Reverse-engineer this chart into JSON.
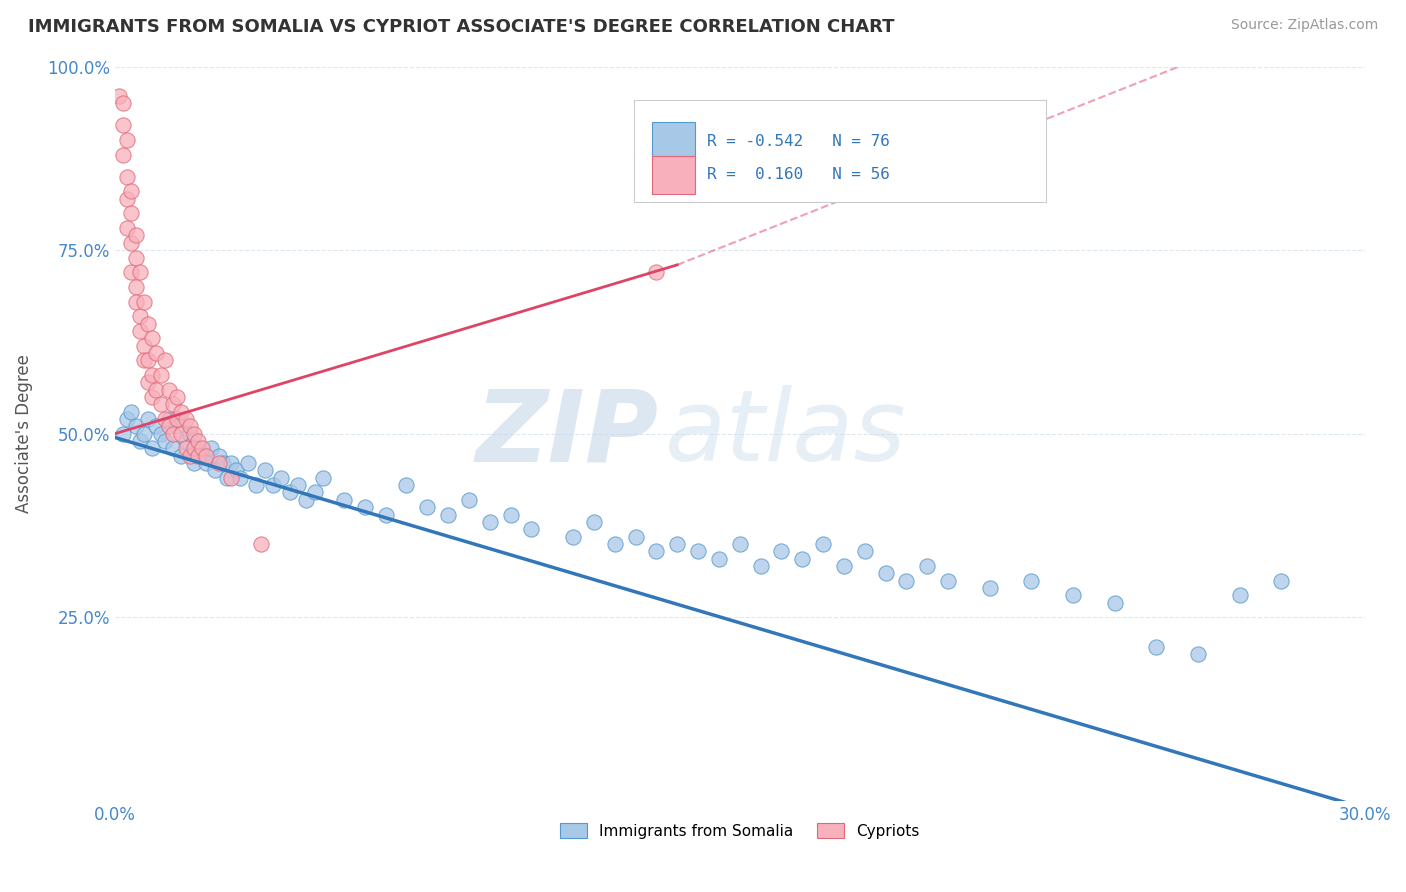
{
  "title": "IMMIGRANTS FROM SOMALIA VS CYPRIOT ASSOCIATE'S DEGREE CORRELATION CHART",
  "source_text": "Source: ZipAtlas.com",
  "ylabel": "Associate's Degree",
  "x_min": 0.0,
  "x_max": 0.3,
  "y_min": 0.0,
  "y_max": 1.0,
  "x_ticks": [
    0.0,
    0.05,
    0.1,
    0.15,
    0.2,
    0.25,
    0.3
  ],
  "x_tick_labels": [
    "0.0%",
    "",
    "",
    "",
    "",
    "",
    "30.0%"
  ],
  "y_ticks": [
    0.0,
    0.25,
    0.5,
    0.75,
    1.0
  ],
  "y_tick_labels": [
    "",
    "25.0%",
    "50.0%",
    "75.0%",
    "100.0%"
  ],
  "blue_fill": "#a8c8e8",
  "blue_edge": "#5599cc",
  "pink_fill": "#f8b0bc",
  "pink_edge": "#e06878",
  "blue_line_color": "#3377bb",
  "pink_line_color": "#dd4466",
  "blue_R": -0.542,
  "blue_N": 76,
  "pink_R": 0.16,
  "pink_N": 56,
  "legend_label_blue": "Immigrants from Somalia",
  "legend_label_pink": "Cypriots",
  "watermark_zip": "ZIP",
  "watermark_atlas": "atlas",
  "background_color": "#ffffff",
  "grid_color": "#dde8f0",
  "blue_trend": [
    0.0,
    0.495,
    0.3,
    -0.01
  ],
  "pink_trend_solid": [
    0.0,
    0.5,
    0.135,
    0.73
  ],
  "pink_trend_dashed": [
    0.0,
    0.5,
    0.3,
    1.1
  ],
  "blue_scatter": [
    [
      0.002,
      0.5
    ],
    [
      0.003,
      0.52
    ],
    [
      0.004,
      0.53
    ],
    [
      0.005,
      0.51
    ],
    [
      0.006,
      0.49
    ],
    [
      0.007,
      0.5
    ],
    [
      0.008,
      0.52
    ],
    [
      0.009,
      0.48
    ],
    [
      0.01,
      0.51
    ],
    [
      0.011,
      0.5
    ],
    [
      0.012,
      0.49
    ],
    [
      0.013,
      0.52
    ],
    [
      0.014,
      0.48
    ],
    [
      0.015,
      0.51
    ],
    [
      0.016,
      0.47
    ],
    [
      0.017,
      0.49
    ],
    [
      0.018,
      0.5
    ],
    [
      0.019,
      0.46
    ],
    [
      0.02,
      0.48
    ],
    [
      0.021,
      0.47
    ],
    [
      0.022,
      0.46
    ],
    [
      0.023,
      0.48
    ],
    [
      0.024,
      0.45
    ],
    [
      0.025,
      0.47
    ],
    [
      0.026,
      0.46
    ],
    [
      0.027,
      0.44
    ],
    [
      0.028,
      0.46
    ],
    [
      0.029,
      0.45
    ],
    [
      0.03,
      0.44
    ],
    [
      0.032,
      0.46
    ],
    [
      0.034,
      0.43
    ],
    [
      0.036,
      0.45
    ],
    [
      0.038,
      0.43
    ],
    [
      0.04,
      0.44
    ],
    [
      0.042,
      0.42
    ],
    [
      0.044,
      0.43
    ],
    [
      0.046,
      0.41
    ],
    [
      0.048,
      0.42
    ],
    [
      0.05,
      0.44
    ],
    [
      0.055,
      0.41
    ],
    [
      0.06,
      0.4
    ],
    [
      0.065,
      0.39
    ],
    [
      0.07,
      0.43
    ],
    [
      0.075,
      0.4
    ],
    [
      0.08,
      0.39
    ],
    [
      0.085,
      0.41
    ],
    [
      0.09,
      0.38
    ],
    [
      0.095,
      0.39
    ],
    [
      0.1,
      0.37
    ],
    [
      0.11,
      0.36
    ],
    [
      0.115,
      0.38
    ],
    [
      0.12,
      0.35
    ],
    [
      0.125,
      0.36
    ],
    [
      0.13,
      0.34
    ],
    [
      0.135,
      0.35
    ],
    [
      0.14,
      0.34
    ],
    [
      0.145,
      0.33
    ],
    [
      0.15,
      0.35
    ],
    [
      0.155,
      0.32
    ],
    [
      0.16,
      0.34
    ],
    [
      0.165,
      0.33
    ],
    [
      0.17,
      0.35
    ],
    [
      0.175,
      0.32
    ],
    [
      0.18,
      0.34
    ],
    [
      0.185,
      0.31
    ],
    [
      0.19,
      0.3
    ],
    [
      0.195,
      0.32
    ],
    [
      0.2,
      0.3
    ],
    [
      0.21,
      0.29
    ],
    [
      0.22,
      0.3
    ],
    [
      0.23,
      0.28
    ],
    [
      0.24,
      0.27
    ],
    [
      0.25,
      0.21
    ],
    [
      0.26,
      0.2
    ],
    [
      0.27,
      0.28
    ],
    [
      0.28,
      0.3
    ]
  ],
  "pink_scatter": [
    [
      0.001,
      0.96
    ],
    [
      0.002,
      0.92
    ],
    [
      0.002,
      0.88
    ],
    [
      0.003,
      0.85
    ],
    [
      0.003,
      0.82
    ],
    [
      0.003,
      0.78
    ],
    [
      0.004,
      0.8
    ],
    [
      0.004,
      0.76
    ],
    [
      0.004,
      0.72
    ],
    [
      0.005,
      0.74
    ],
    [
      0.005,
      0.7
    ],
    [
      0.005,
      0.68
    ],
    [
      0.006,
      0.72
    ],
    [
      0.006,
      0.66
    ],
    [
      0.006,
      0.64
    ],
    [
      0.007,
      0.68
    ],
    [
      0.007,
      0.62
    ],
    [
      0.007,
      0.6
    ],
    [
      0.008,
      0.65
    ],
    [
      0.008,
      0.6
    ],
    [
      0.008,
      0.57
    ],
    [
      0.009,
      0.63
    ],
    [
      0.009,
      0.58
    ],
    [
      0.009,
      0.55
    ],
    [
      0.01,
      0.61
    ],
    [
      0.01,
      0.56
    ],
    [
      0.011,
      0.58
    ],
    [
      0.011,
      0.54
    ],
    [
      0.012,
      0.6
    ],
    [
      0.012,
      0.52
    ],
    [
      0.013,
      0.56
    ],
    [
      0.013,
      0.51
    ],
    [
      0.014,
      0.54
    ],
    [
      0.014,
      0.5
    ],
    [
      0.015,
      0.55
    ],
    [
      0.015,
      0.52
    ],
    [
      0.016,
      0.53
    ],
    [
      0.016,
      0.5
    ],
    [
      0.017,
      0.52
    ],
    [
      0.017,
      0.48
    ],
    [
      0.018,
      0.51
    ],
    [
      0.018,
      0.47
    ],
    [
      0.019,
      0.5
    ],
    [
      0.019,
      0.48
    ],
    [
      0.02,
      0.49
    ],
    [
      0.02,
      0.47
    ],
    [
      0.021,
      0.48
    ],
    [
      0.022,
      0.47
    ],
    [
      0.025,
      0.46
    ],
    [
      0.028,
      0.44
    ],
    [
      0.003,
      0.9
    ],
    [
      0.002,
      0.95
    ],
    [
      0.035,
      0.35
    ],
    [
      0.13,
      0.72
    ],
    [
      0.004,
      0.83
    ],
    [
      0.005,
      0.77
    ]
  ]
}
